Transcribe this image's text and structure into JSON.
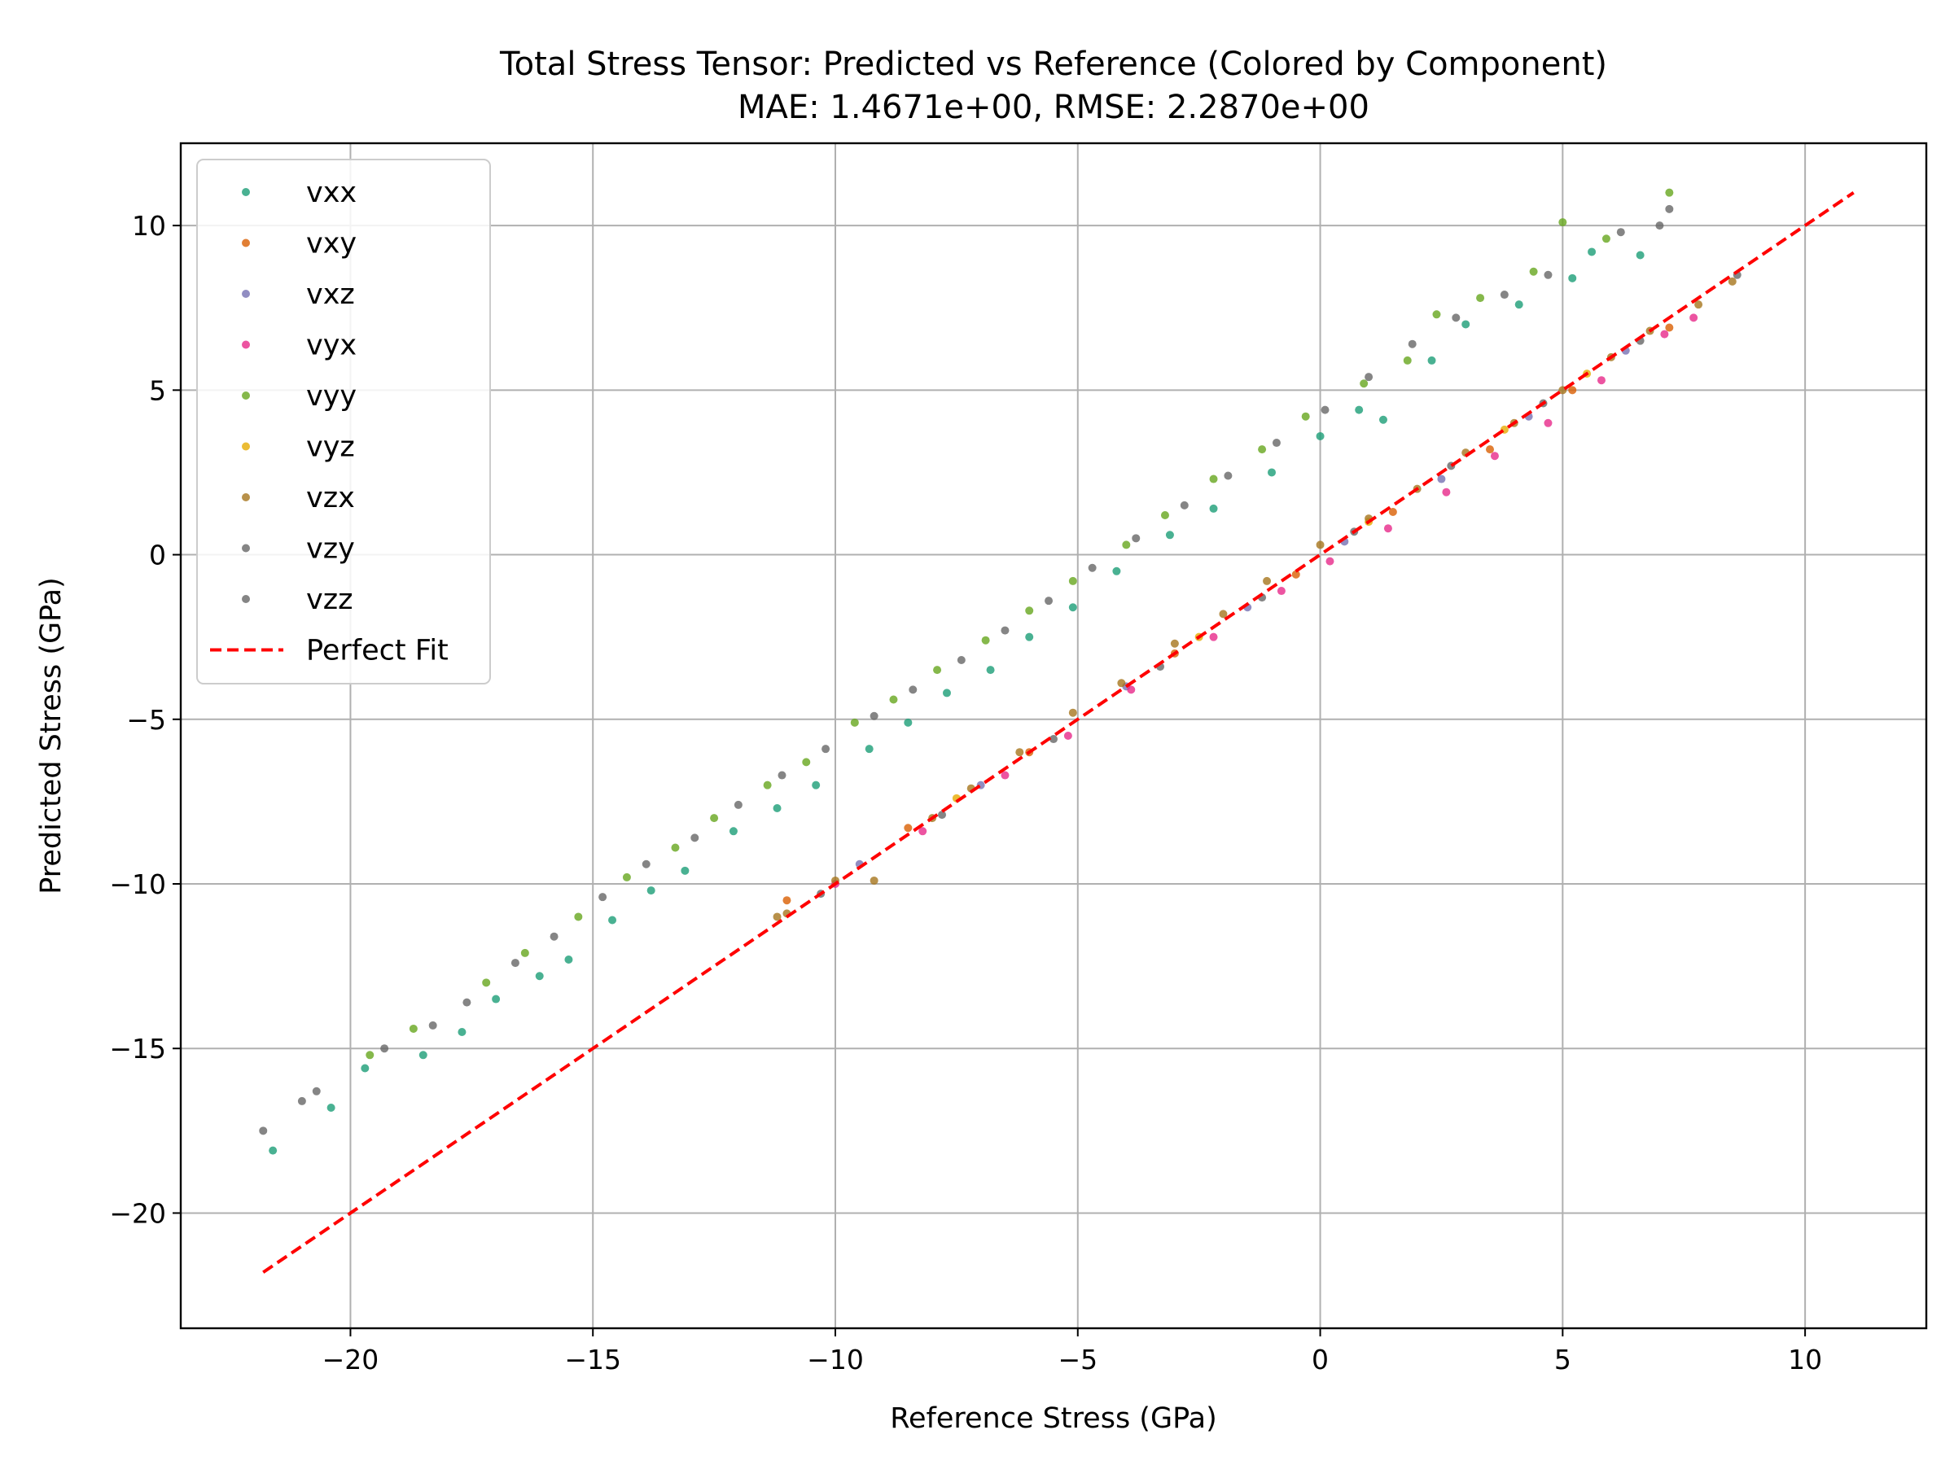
{
  "chart_data": {
    "type": "scatter",
    "title": "Total Stress Tensor: Predicted vs Reference (Colored by Component)",
    "subtitle": "MAE: 1.4671e+00, RMSE: 2.2870e+00",
    "xlabel": "Reference Stress (GPa)",
    "ylabel": "Predicted Stress (GPa)",
    "xlim": [
      -23.5,
      12.5
    ],
    "ylim": [
      -23.5,
      12.5
    ],
    "xticks": [
      -20,
      -15,
      -10,
      -5,
      0,
      5,
      10
    ],
    "yticks": [
      -20,
      -15,
      -10,
      -5,
      0,
      5,
      10
    ],
    "xtick_labels": [
      "−20",
      "−15",
      "−10",
      "−5",
      "0",
      "5",
      "10"
    ],
    "ytick_labels": [
      "−20",
      "−15",
      "−10",
      "−5",
      "0",
      "5",
      "10"
    ],
    "grid": true,
    "legend_position": "upper-left",
    "series": [
      {
        "name": "vxx",
        "color": "#1b9e77",
        "points": [
          [
            -21.6,
            -18.1
          ],
          [
            -20.4,
            -16.8
          ],
          [
            -19.7,
            -15.6
          ],
          [
            -18.5,
            -15.2
          ],
          [
            -17.7,
            -14.5
          ],
          [
            -17.0,
            -13.5
          ],
          [
            -16.1,
            -12.8
          ],
          [
            -15.5,
            -12.3
          ],
          [
            -14.6,
            -11.1
          ],
          [
            -13.8,
            -10.2
          ],
          [
            -13.1,
            -9.6
          ],
          [
            -12.1,
            -8.4
          ],
          [
            -11.2,
            -7.7
          ],
          [
            -10.4,
            -7.0
          ],
          [
            -9.3,
            -5.9
          ],
          [
            -8.5,
            -5.1
          ],
          [
            -7.7,
            -4.2
          ],
          [
            -6.8,
            -3.5
          ],
          [
            -6.0,
            -2.5
          ],
          [
            -5.1,
            -1.6
          ],
          [
            -4.2,
            -0.5
          ],
          [
            -3.1,
            0.6
          ],
          [
            -2.2,
            1.4
          ],
          [
            -1.0,
            2.5
          ],
          [
            0.0,
            3.6
          ],
          [
            0.8,
            4.4
          ],
          [
            1.3,
            4.1
          ],
          [
            2.3,
            5.9
          ],
          [
            3.0,
            7.0
          ],
          [
            4.1,
            7.6
          ],
          [
            5.2,
            8.4
          ],
          [
            5.6,
            9.2
          ],
          [
            6.6,
            9.1
          ]
        ]
      },
      {
        "name": "vxy",
        "color": "#d95f02",
        "points": [
          [
            -11.0,
            -10.5
          ],
          [
            -8.5,
            -8.3
          ],
          [
            -6.0,
            -6.0
          ],
          [
            -3.0,
            -3.0
          ],
          [
            -0.5,
            -0.6
          ],
          [
            1.5,
            1.3
          ],
          [
            3.5,
            3.2
          ],
          [
            5.2,
            5.0
          ],
          [
            7.2,
            6.9
          ]
        ]
      },
      {
        "name": "vxz",
        "color": "#7570b3",
        "points": [
          [
            -9.5,
            -9.4
          ],
          [
            -7.0,
            -7.0
          ],
          [
            -4.0,
            -4.0
          ],
          [
            -1.5,
            -1.6
          ],
          [
            0.5,
            0.4
          ],
          [
            2.5,
            2.3
          ],
          [
            4.3,
            4.2
          ],
          [
            6.3,
            6.2
          ]
        ]
      },
      {
        "name": "vyx",
        "color": "#e7298a",
        "points": [
          [
            -10.0,
            -10.0
          ],
          [
            -8.2,
            -8.4
          ],
          [
            -6.5,
            -6.7
          ],
          [
            -5.2,
            -5.5
          ],
          [
            -3.9,
            -4.1
          ],
          [
            -2.2,
            -2.5
          ],
          [
            -0.8,
            -1.1
          ],
          [
            0.2,
            -0.2
          ],
          [
            1.4,
            0.8
          ],
          [
            2.6,
            1.9
          ],
          [
            3.6,
            3.0
          ],
          [
            4.7,
            4.0
          ],
          [
            5.8,
            5.3
          ],
          [
            7.1,
            6.7
          ],
          [
            7.7,
            7.2
          ]
        ]
      },
      {
        "name": "vyy",
        "color": "#66a61e",
        "points": [
          [
            -19.6,
            -15.2
          ],
          [
            -18.7,
            -14.4
          ],
          [
            -17.2,
            -13.0
          ],
          [
            -16.4,
            -12.1
          ],
          [
            -15.3,
            -11.0
          ],
          [
            -14.3,
            -9.8
          ],
          [
            -13.3,
            -8.9
          ],
          [
            -12.5,
            -8.0
          ],
          [
            -11.4,
            -7.0
          ],
          [
            -10.6,
            -6.3
          ],
          [
            -9.6,
            -5.1
          ],
          [
            -8.8,
            -4.4
          ],
          [
            -7.9,
            -3.5
          ],
          [
            -6.9,
            -2.6
          ],
          [
            -6.0,
            -1.7
          ],
          [
            -5.1,
            -0.8
          ],
          [
            -4.0,
            0.3
          ],
          [
            -3.2,
            1.2
          ],
          [
            -2.2,
            2.3
          ],
          [
            -1.2,
            3.2
          ],
          [
            -0.3,
            4.2
          ],
          [
            0.9,
            5.2
          ],
          [
            1.8,
            5.9
          ],
          [
            2.4,
            7.3
          ],
          [
            3.3,
            7.8
          ],
          [
            4.4,
            8.6
          ],
          [
            5.0,
            10.1
          ],
          [
            5.9,
            9.6
          ],
          [
            7.2,
            11.0
          ]
        ]
      },
      {
        "name": "vyz",
        "color": "#e6ab02",
        "points": [
          [
            -7.5,
            -7.4
          ],
          [
            -2.5,
            -2.5
          ],
          [
            1.0,
            1.0
          ],
          [
            3.8,
            3.8
          ],
          [
            5.5,
            5.5
          ]
        ]
      },
      {
        "name": "vzx",
        "color": "#a6761d",
        "points": [
          [
            -11.0,
            -10.9
          ],
          [
            -11.2,
            -11.0
          ],
          [
            -10.0,
            -9.9
          ],
          [
            -9.2,
            -9.9
          ],
          [
            -8.0,
            -8.0
          ],
          [
            -7.2,
            -7.1
          ],
          [
            -6.2,
            -6.0
          ],
          [
            -5.1,
            -4.8
          ],
          [
            -4.1,
            -3.9
          ],
          [
            -3.0,
            -2.7
          ],
          [
            -2.0,
            -1.8
          ],
          [
            -1.1,
            -0.8
          ],
          [
            0.0,
            0.3
          ],
          [
            1.0,
            1.1
          ],
          [
            2.0,
            2.0
          ],
          [
            3.0,
            3.1
          ],
          [
            4.0,
            4.0
          ],
          [
            5.0,
            5.0
          ],
          [
            6.0,
            6.0
          ],
          [
            6.8,
            6.8
          ],
          [
            7.8,
            7.6
          ],
          [
            8.5,
            8.3
          ]
        ]
      },
      {
        "name": "vzy",
        "color": "#666666",
        "points": [
          [
            -10.3,
            -10.3
          ],
          [
            -7.8,
            -7.9
          ],
          [
            -5.5,
            -5.6
          ],
          [
            -3.3,
            -3.4
          ],
          [
            -1.2,
            -1.3
          ],
          [
            0.7,
            0.7
          ],
          [
            2.7,
            2.7
          ],
          [
            4.6,
            4.6
          ],
          [
            6.6,
            6.5
          ],
          [
            8.6,
            8.5
          ]
        ]
      },
      {
        "name": "vzz",
        "color": "#666666",
        "points": [
          [
            -21.8,
            -17.5
          ],
          [
            -21.0,
            -16.6
          ],
          [
            -20.7,
            -16.3
          ],
          [
            -19.3,
            -15.0
          ],
          [
            -18.3,
            -14.3
          ],
          [
            -17.6,
            -13.6
          ],
          [
            -16.6,
            -12.4
          ],
          [
            -15.8,
            -11.6
          ],
          [
            -14.8,
            -10.4
          ],
          [
            -13.9,
            -9.4
          ],
          [
            -12.9,
            -8.6
          ],
          [
            -12.0,
            -7.6
          ],
          [
            -11.1,
            -6.7
          ],
          [
            -10.2,
            -5.9
          ],
          [
            -9.2,
            -4.9
          ],
          [
            -8.4,
            -4.1
          ],
          [
            -7.4,
            -3.2
          ],
          [
            -6.5,
            -2.3
          ],
          [
            -5.6,
            -1.4
          ],
          [
            -4.7,
            -0.4
          ],
          [
            -3.8,
            0.5
          ],
          [
            -2.8,
            1.5
          ],
          [
            -1.9,
            2.4
          ],
          [
            -0.9,
            3.4
          ],
          [
            0.1,
            4.4
          ],
          [
            1.0,
            5.4
          ],
          [
            1.9,
            6.4
          ],
          [
            2.8,
            7.2
          ],
          [
            3.8,
            7.9
          ],
          [
            4.7,
            8.5
          ],
          [
            6.2,
            9.8
          ],
          [
            7.0,
            10.0
          ],
          [
            7.2,
            10.5
          ]
        ]
      },
      {
        "name": "Perfect Fit",
        "color": "#ff0000",
        "line_from": [
          -21.8,
          -21.8
        ],
        "line_to": [
          11.0,
          11.0
        ]
      }
    ]
  }
}
